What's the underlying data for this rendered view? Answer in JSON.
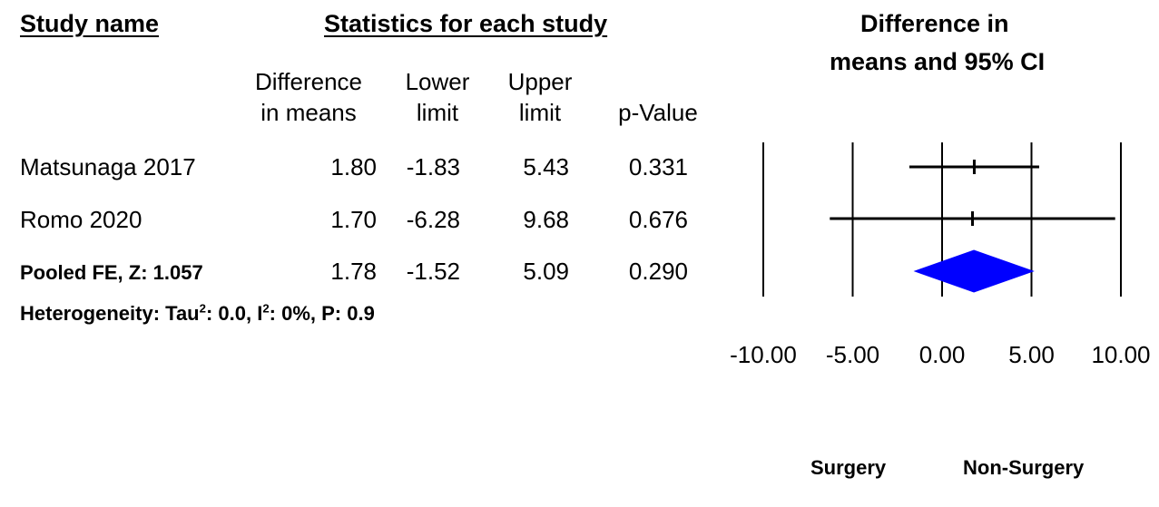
{
  "headers": {
    "study_name": "Study name",
    "statistics": "Statistics for each study",
    "plot_title_line1": "Difference in",
    "plot_title_line2": "means and 95% CI"
  },
  "columns": {
    "diff_line1": "Difference",
    "diff_line2": "in means",
    "lower_line1": "Lower",
    "lower_line2": "limit",
    "upper_line1": "Upper",
    "upper_line2": "limit",
    "pvalue": "p-Value"
  },
  "rows": [
    {
      "study": "Matsunaga 2017",
      "diff": "1.80",
      "lower": "-1.83",
      "upper": "5.43",
      "p": "0.331"
    },
    {
      "study": "Romo 2020",
      "diff": "1.70",
      "lower": "-6.28",
      "upper": "9.68",
      "p": "0.676"
    },
    {
      "study": "Pooled FE, Z: 1.057",
      "diff": "1.78",
      "lower": "-1.52",
      "upper": "5.09",
      "p": "0.290"
    }
  ],
  "heterogeneity": {
    "prefix": "Heterogeneity: Tau",
    "sup1": "2",
    "mid": ": 0.0, I",
    "sup2": "2",
    "suffix": ": 0%, P: 0.9"
  },
  "footer": {
    "left": "Surgery",
    "right": "Non-Surgery"
  },
  "chart_data": {
    "type": "forest",
    "xlim": [
      -10,
      10
    ],
    "ticks": [
      -10,
      -5,
      0,
      5,
      10
    ],
    "tick_labels": [
      "-10.00",
      "-5.00",
      "0.00",
      "5.00",
      "10.00"
    ],
    "studies": [
      {
        "name": "Matsunaga 2017",
        "estimate": 1.8,
        "lower": -1.83,
        "upper": 5.43
      },
      {
        "name": "Romo 2020",
        "estimate": 1.7,
        "lower": -6.28,
        "upper": 9.68
      }
    ],
    "pooled": {
      "name": "Pooled FE",
      "estimate": 1.78,
      "lower": -1.52,
      "upper": 5.09
    },
    "colors": {
      "pooled": "#0000ff",
      "lines": "#000000"
    }
  }
}
